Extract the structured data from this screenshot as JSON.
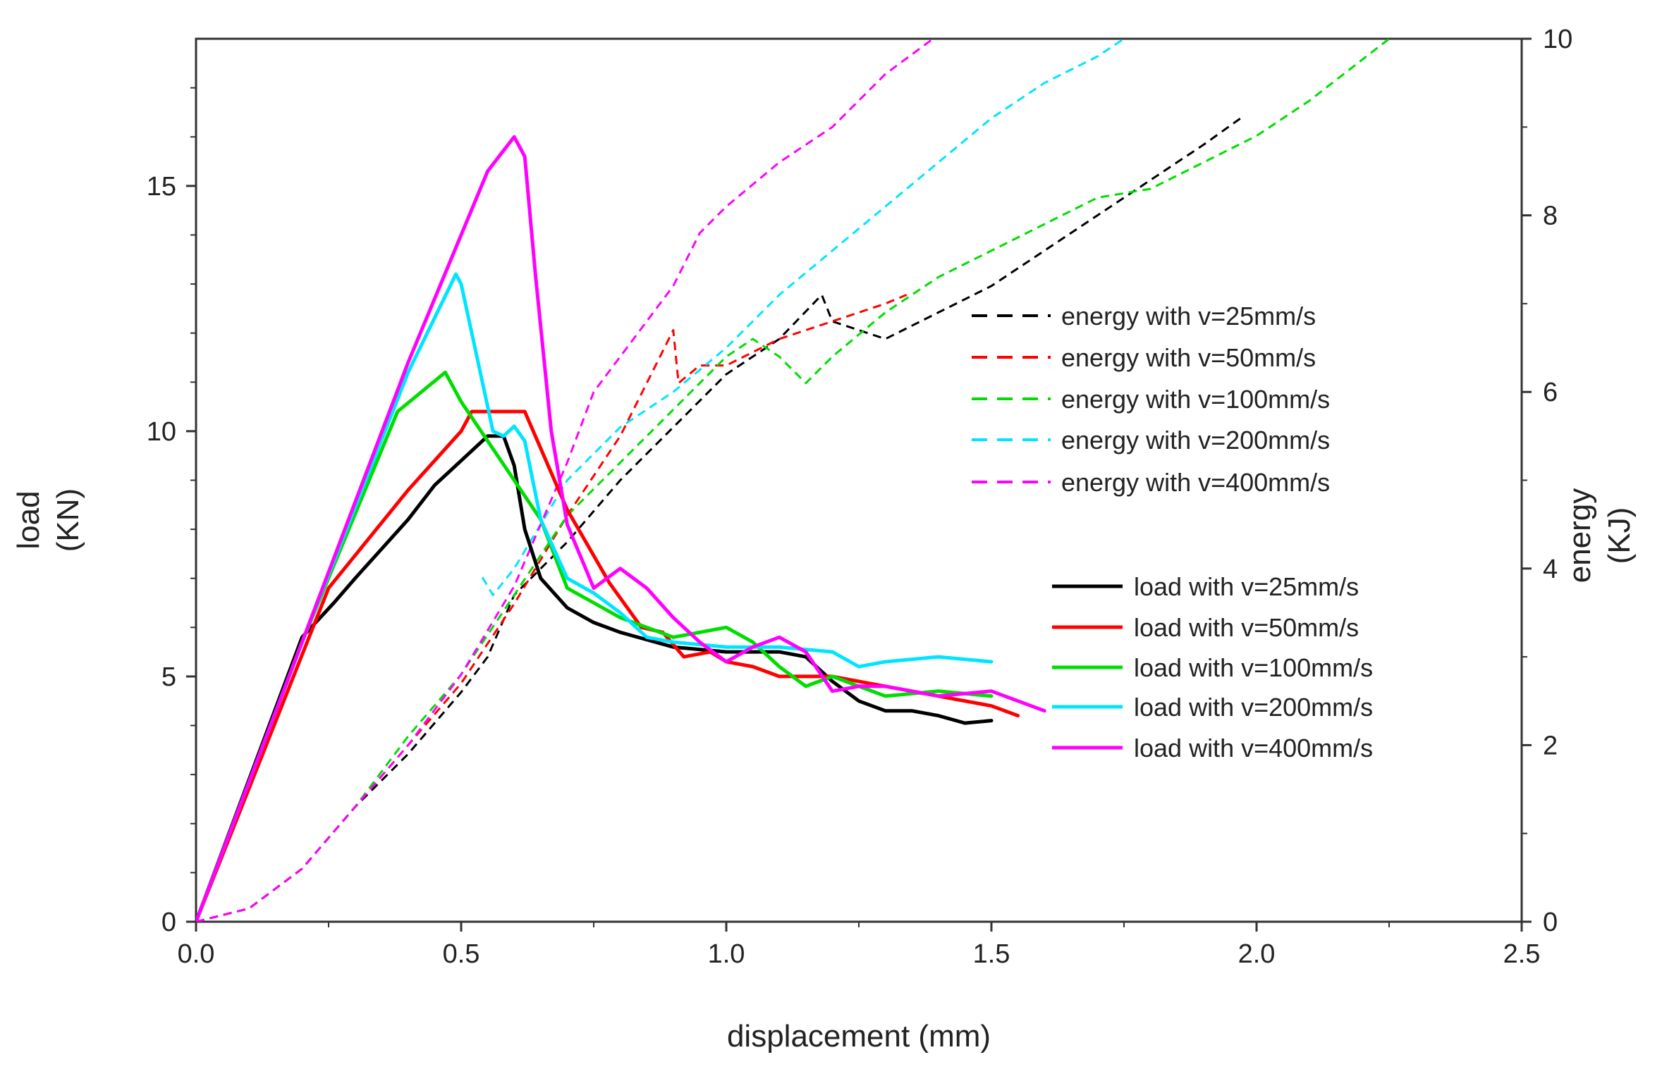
{
  "chart_data": {
    "type": "line",
    "title": "",
    "xlabel": "displacement (mm)",
    "ylabel_left": [
      "load",
      "(KN)"
    ],
    "ylabel_right": [
      "energy",
      "(KJ)"
    ],
    "xlim": [
      0.0,
      2.5
    ],
    "ylim_left": [
      0,
      18
    ],
    "ylim_right": [
      0,
      10
    ],
    "x_ticks": [
      "0.0",
      "0.5",
      "1.0",
      "1.5",
      "2.0",
      "2.5"
    ],
    "x_tick_values": [
      0.0,
      0.5,
      1.0,
      1.5,
      2.0,
      2.5
    ],
    "y_left_ticks": [
      "0",
      "5",
      "10",
      "15"
    ],
    "y_left_tick_values": [
      0,
      5,
      10,
      15
    ],
    "y_right_ticks": [
      "0",
      "2",
      "4",
      "6",
      "8",
      "10"
    ],
    "y_right_tick_values": [
      0,
      2,
      4,
      6,
      8,
      10
    ],
    "grid": false,
    "legend_energy": [
      "energy with v=25mm/s",
      "energy with v=50mm/s",
      "energy with v=100mm/s",
      "energy with v=200mm/s",
      "energy with v=400mm/s"
    ],
    "legend_load": [
      "load with v=25mm/s",
      "load with v=50mm/s",
      "load with v=100mm/s",
      "load with v=200mm/s",
      "load with v=400mm/s"
    ],
    "series_colors": {
      "v25": "#000000",
      "v50": "#ff0000",
      "v100": "#00dd00",
      "v200": "#00e5ff",
      "v400": "#ff00ff"
    },
    "load_series": [
      {
        "name": "load with v=25mm/s",
        "color": "#000000",
        "x": [
          0,
          0.2,
          0.26,
          0.3,
          0.35,
          0.4,
          0.45,
          0.5,
          0.55,
          0.58,
          0.6,
          0.62,
          0.65,
          0.7,
          0.75,
          0.8,
          0.9,
          1.0,
          1.1,
          1.15,
          1.2,
          1.25,
          1.3,
          1.35,
          1.4,
          1.45,
          1.5
        ],
        "y": [
          0,
          5.8,
          6.5,
          7.0,
          7.6,
          8.2,
          8.9,
          9.4,
          9.9,
          9.9,
          9.3,
          8.0,
          7.0,
          6.4,
          6.1,
          5.9,
          5.6,
          5.5,
          5.5,
          5.4,
          4.9,
          4.5,
          4.3,
          4.3,
          4.2,
          4.05,
          4.1
        ]
      },
      {
        "name": "load with v=50mm/s",
        "color": "#ff0000",
        "x": [
          0,
          0.25,
          0.4,
          0.5,
          0.52,
          0.55,
          0.6,
          0.62,
          0.7,
          0.78,
          0.84,
          0.88,
          0.92,
          0.97,
          1.0,
          1.05,
          1.1,
          1.2,
          1.3,
          1.4,
          1.5,
          1.55
        ],
        "y": [
          0,
          6.8,
          8.8,
          10.0,
          10.4,
          10.4,
          10.4,
          10.4,
          8.4,
          6.9,
          6.0,
          5.9,
          5.4,
          5.5,
          5.3,
          5.2,
          5.0,
          5.0,
          4.8,
          4.6,
          4.4,
          4.2
        ]
      },
      {
        "name": "load with v=100mm/s",
        "color": "#00dd00",
        "x": [
          0,
          0.2,
          0.38,
          0.47,
          0.5,
          0.55,
          0.6,
          0.65,
          0.7,
          0.75,
          0.8,
          0.85,
          0.9,
          0.95,
          1.0,
          1.05,
          1.1,
          1.15,
          1.2,
          1.25,
          1.3,
          1.4,
          1.5
        ],
        "y": [
          0,
          5.7,
          10.4,
          11.2,
          10.6,
          9.8,
          9.0,
          8.2,
          6.8,
          6.5,
          6.2,
          6.0,
          5.8,
          5.9,
          6.0,
          5.7,
          5.2,
          4.8,
          5.0,
          4.8,
          4.6,
          4.7,
          4.6
        ]
      },
      {
        "name": "load with v=200mm/s",
        "color": "#00e5ff",
        "x": [
          0,
          0.2,
          0.4,
          0.49,
          0.5,
          0.53,
          0.56,
          0.58,
          0.6,
          0.62,
          0.65,
          0.7,
          0.75,
          0.8,
          0.85,
          0.9,
          1.0,
          1.1,
          1.2,
          1.25,
          1.3,
          1.4,
          1.5
        ],
        "y": [
          0,
          5.7,
          11.2,
          13.2,
          13.0,
          11.5,
          10.0,
          9.9,
          10.1,
          9.8,
          8.2,
          7.0,
          6.7,
          6.3,
          5.8,
          5.7,
          5.6,
          5.6,
          5.5,
          5.2,
          5.3,
          5.4,
          5.3
        ]
      },
      {
        "name": "load with v=400mm/s",
        "color": "#ff00ff",
        "x": [
          0,
          0.2,
          0.4,
          0.55,
          0.6,
          0.62,
          0.64,
          0.67,
          0.7,
          0.75,
          0.8,
          0.85,
          0.9,
          0.95,
          1.0,
          1.05,
          1.1,
          1.15,
          1.2,
          1.25,
          1.3,
          1.4,
          1.5,
          1.6
        ],
        "y": [
          0,
          5.7,
          11.4,
          15.3,
          16.0,
          15.6,
          13.2,
          10.0,
          8.1,
          6.8,
          7.2,
          6.8,
          6.2,
          5.7,
          5.3,
          5.6,
          5.8,
          5.5,
          4.7,
          4.8,
          4.8,
          4.6,
          4.7,
          4.3
        ]
      }
    ],
    "energy_series": [
      {
        "name": "energy with v=25mm/s",
        "color": "#000000",
        "x": [
          0,
          0.1,
          0.2,
          0.3,
          0.4,
          0.5,
          0.55,
          0.6,
          0.7,
          0.8,
          0.9,
          1.0,
          1.1,
          1.18,
          1.2,
          1.3,
          1.4,
          1.5,
          1.6,
          1.7,
          1.8,
          1.9,
          1.97
        ],
        "y": [
          0,
          0.15,
          0.6,
          1.3,
          1.9,
          2.6,
          3.0,
          3.7,
          4.3,
          5.0,
          5.6,
          6.2,
          6.6,
          7.1,
          6.8,
          6.6,
          6.9,
          7.2,
          7.6,
          8.0,
          8.4,
          8.8,
          9.1
        ]
      },
      {
        "name": "energy with v=50mm/s",
        "color": "#ff0000",
        "x": [
          0,
          0.1,
          0.2,
          0.3,
          0.4,
          0.5,
          0.6,
          0.7,
          0.8,
          0.9,
          0.91,
          0.95,
          1.0,
          1.1,
          1.2,
          1.3,
          1.34
        ],
        "y": [
          0,
          0.15,
          0.6,
          1.3,
          2.0,
          2.7,
          3.6,
          4.6,
          5.5,
          6.7,
          6.1,
          6.3,
          6.3,
          6.6,
          6.8,
          7.0,
          7.1
        ]
      },
      {
        "name": "energy with v=100mm/s",
        "color": "#00dd00",
        "x": [
          0,
          0.1,
          0.2,
          0.3,
          0.4,
          0.5,
          0.6,
          0.7,
          0.8,
          0.9,
          1.0,
          1.05,
          1.1,
          1.15,
          1.2,
          1.3,
          1.4,
          1.5,
          1.6,
          1.7,
          1.8,
          1.9,
          2.0,
          2.1,
          2.25
        ],
        "y": [
          0,
          0.15,
          0.6,
          1.3,
          2.1,
          2.8,
          3.7,
          4.6,
          5.2,
          5.8,
          6.4,
          6.6,
          6.4,
          6.1,
          6.4,
          6.9,
          7.3,
          7.6,
          7.9,
          8.2,
          8.3,
          8.6,
          8.9,
          9.3,
          10.0
        ]
      },
      {
        "name": "energy with v=200mm/s",
        "color": "#00e5ff",
        "x": [
          0.54,
          0.56,
          0.6,
          0.65,
          0.7,
          0.8,
          0.9,
          1.0,
          1.1,
          1.2,
          1.3,
          1.4,
          1.5,
          1.6,
          1.7,
          1.75
        ],
        "y": [
          3.9,
          3.7,
          4.0,
          4.5,
          5.0,
          5.6,
          6.0,
          6.5,
          7.1,
          7.6,
          8.1,
          8.6,
          9.1,
          9.5,
          9.8,
          10.0
        ]
      },
      {
        "name": "energy with v=400mm/s",
        "color": "#ff00ff",
        "x": [
          0,
          0.1,
          0.2,
          0.3,
          0.4,
          0.5,
          0.6,
          0.7,
          0.75,
          0.8,
          0.9,
          0.95,
          1.0,
          1.1,
          1.2,
          1.3,
          1.39
        ],
        "y": [
          0,
          0.15,
          0.6,
          1.3,
          2.0,
          2.8,
          3.8,
          5.2,
          6.0,
          6.4,
          7.2,
          7.8,
          8.1,
          8.6,
          9.0,
          9.6,
          10.0
        ]
      }
    ]
  }
}
